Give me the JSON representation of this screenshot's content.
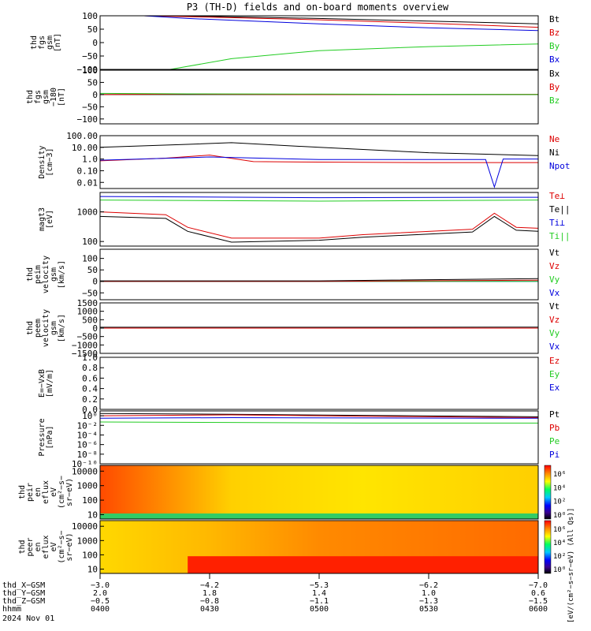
{
  "title": "P3 (TH-D) fields and on-board moments overview",
  "colors": {
    "black": "#000000",
    "red": "#dd0000",
    "green": "#22cc22",
    "blue": "#0000dd"
  },
  "chart_data": [
    {
      "type": "line",
      "ylabel": [
        "thd",
        "fgs",
        "gsm",
        "[nT]"
      ],
      "ylim": [
        -100,
        100
      ],
      "yticks": [
        "100",
        "50",
        "0",
        "−50",
        "−100"
      ],
      "yticks_values": [
        100,
        50,
        0,
        -50,
        -100
      ],
      "legend": [
        {
          "name": "Bt",
          "color": "#000000"
        },
        {
          "name": "Bz",
          "color": "#dd0000"
        },
        {
          "name": "By",
          "color": "#22cc22"
        },
        {
          "name": "Bx",
          "color": "#0000dd"
        }
      ],
      "series": [
        {
          "name": "Bt",
          "color": "#000000",
          "x": [
            0.1,
            0.25,
            0.5,
            0.75,
            1.0
          ],
          "y": [
            100,
            98,
            90,
            80,
            70
          ]
        },
        {
          "name": "Bz",
          "color": "#dd0000",
          "x": [
            0.1,
            0.25,
            0.5,
            0.75,
            1.0
          ],
          "y": [
            100,
            95,
            85,
            72,
            57
          ]
        },
        {
          "name": "Bx",
          "color": "#0000dd",
          "x": [
            0.1,
            0.2,
            0.5,
            0.75,
            1.0
          ],
          "y": [
            100,
            90,
            70,
            55,
            45
          ]
        },
        {
          "name": "By",
          "color": "#22cc22",
          "x": [
            0.16,
            0.3,
            0.5,
            0.75,
            1.0
          ],
          "y": [
            -100,
            -60,
            -30,
            -15,
            -5
          ]
        }
      ]
    },
    {
      "type": "line",
      "ylabel": [
        "thd",
        "fgs",
        "gsm",
        "−180",
        "[nT]"
      ],
      "ylim": [
        -120,
        100
      ],
      "yticks": [
        "100",
        "50",
        "0",
        "−50",
        "−100"
      ],
      "yticks_values": [
        100,
        50,
        0,
        -50,
        -100
      ],
      "legend": [
        {
          "name": "Bx",
          "color": "#000000"
        },
        {
          "name": "By",
          "color": "#dd0000"
        },
        {
          "name": "Bz",
          "color": "#22cc22"
        }
      ],
      "series": [
        {
          "name": "Bx",
          "color": "#000000",
          "x": [
            0,
            0.2,
            0.5,
            1.0
          ],
          "y": [
            0,
            0,
            0,
            0
          ]
        },
        {
          "name": "By",
          "color": "#dd0000",
          "x": [
            0,
            0.2,
            0.5,
            1.0
          ],
          "y": [
            0,
            2,
            0,
            1
          ]
        },
        {
          "name": "Bz",
          "color": "#22cc22",
          "x": [
            0,
            0.2,
            0.5,
            1.0
          ],
          "y": [
            5,
            3,
            2,
            0
          ]
        }
      ]
    },
    {
      "type": "line",
      "ylabel": [
        "Density",
        "[cm−3]"
      ],
      "ylim": [
        0.003,
        100
      ],
      "yscale": "log",
      "yticks": [
        "100.00",
        "10.00",
        "1.0",
        "0.10",
        "0.01"
      ],
      "yticks_values": [
        100,
        10,
        1,
        0.1,
        0.01
      ],
      "legend": [
        {
          "name": "Ne",
          "color": "#dd0000"
        },
        {
          "name": "Ni",
          "color": "#000000"
        },
        {
          "name": "Npot",
          "color": "#0000dd"
        }
      ],
      "series": [
        {
          "name": "Ni",
          "color": "#000000",
          "x": [
            0,
            0.2,
            0.3,
            0.5,
            0.75,
            1.0
          ],
          "y": [
            10,
            18,
            25,
            10,
            3.5,
            2
          ]
        },
        {
          "name": "Ne",
          "color": "#dd0000",
          "x": [
            0,
            0.15,
            0.25,
            0.35,
            0.5,
            0.75,
            1.0
          ],
          "y": [
            0.7,
            1.2,
            2.2,
            0.6,
            0.55,
            0.5,
            0.5
          ]
        },
        {
          "name": "Npot",
          "color": "#0000dd",
          "x": [
            0,
            0.25,
            0.5,
            0.88,
            0.9,
            0.92,
            1.0
          ],
          "y": [
            0.8,
            1.5,
            0.9,
            0.9,
            0.004,
            1.0,
            1.0
          ]
        }
      ]
    },
    {
      "type": "line",
      "ylabel": [
        "magt3",
        "[eV]"
      ],
      "ylim": [
        70,
        4500
      ],
      "yscale": "log",
      "yticks": [
        "1000",
        "100"
      ],
      "yticks_values": [
        1000,
        100
      ],
      "legend": [
        {
          "name": "Te⊥",
          "color": "#dd0000"
        },
        {
          "name": "Te||",
          "color": "#000000"
        },
        {
          "name": "Ti⊥",
          "color": "#0000dd"
        },
        {
          "name": "Ti||",
          "color": "#22cc22"
        }
      ],
      "series": [
        {
          "name": "Ti⊥",
          "color": "#0000dd",
          "x": [
            0,
            0.5,
            1.0
          ],
          "y": [
            3300,
            3000,
            3100
          ]
        },
        {
          "name": "Ti||",
          "color": "#22cc22",
          "x": [
            0,
            0.5,
            1.0
          ],
          "y": [
            2500,
            2300,
            2500
          ]
        },
        {
          "name": "Te⊥",
          "color": "#dd0000",
          "x": [
            0,
            0.15,
            0.2,
            0.3,
            0.5,
            0.6,
            0.85,
            0.9,
            0.95,
            1.0
          ],
          "y": [
            1000,
            800,
            300,
            130,
            130,
            170,
            260,
            900,
            300,
            280
          ]
        },
        {
          "name": "Te||",
          "color": "#000000",
          "x": [
            0,
            0.15,
            0.2,
            0.3,
            0.5,
            0.6,
            0.85,
            0.9,
            0.95,
            1.0
          ],
          "y": [
            700,
            600,
            220,
            95,
            110,
            140,
            210,
            700,
            240,
            220
          ]
        }
      ]
    },
    {
      "type": "line",
      "ylabel": [
        "thd",
        "peim",
        "velocity",
        "gsm",
        "[km/s]"
      ],
      "ylim": [
        -80,
        140
      ],
      "yticks": [
        "100",
        "50",
        "0",
        "−50"
      ],
      "yticks_values": [
        100,
        50,
        0,
        -50
      ],
      "legend": [
        {
          "name": "Vt",
          "color": "#000000"
        },
        {
          "name": "Vz",
          "color": "#dd0000"
        },
        {
          "name": "Vy",
          "color": "#22cc22"
        },
        {
          "name": "Vx",
          "color": "#0000dd"
        }
      ],
      "series": [
        {
          "name": "Vx",
          "color": "#0000dd",
          "x": [
            0,
            0.5,
            1.0
          ],
          "y": [
            0,
            0,
            0
          ]
        },
        {
          "name": "Vy",
          "color": "#22cc22",
          "x": [
            0,
            0.5,
            1.0
          ],
          "y": [
            0,
            0,
            0
          ]
        },
        {
          "name": "Vz",
          "color": "#dd0000",
          "x": [
            0,
            0.5,
            1.0
          ],
          "y": [
            0,
            0,
            5
          ]
        },
        {
          "name": "Vt",
          "color": "#000000",
          "x": [
            0,
            0.5,
            1.0
          ],
          "y": [
            2,
            2,
            12
          ]
        }
      ]
    },
    {
      "type": "line",
      "ylabel": [
        "thd",
        "peem",
        "velocity",
        "gsm",
        "[km/s]"
      ],
      "ylim": [
        -1500,
        1500
      ],
      "yticks": [
        "1500",
        "1000",
        "500",
        "0",
        "−500",
        "−1000",
        "−1500"
      ],
      "yticks_values": [
        1500,
        1000,
        500,
        0,
        -500,
        -1000,
        -1500
      ],
      "legend": [
        {
          "name": "Vt",
          "color": "#000000"
        },
        {
          "name": "Vz",
          "color": "#dd0000"
        },
        {
          "name": "Vy",
          "color": "#22cc22"
        },
        {
          "name": "Vx",
          "color": "#0000dd"
        }
      ],
      "series": [
        {
          "name": "Vx",
          "color": "#0000dd",
          "x": [
            0,
            0.5,
            1.0
          ],
          "y": [
            0,
            0,
            0
          ]
        },
        {
          "name": "Vy",
          "color": "#22cc22",
          "x": [
            0,
            0.5,
            1.0
          ],
          "y": [
            0,
            0,
            0
          ]
        },
        {
          "name": "Vz",
          "color": "#dd0000",
          "x": [
            0,
            0.5,
            1.0
          ],
          "y": [
            0,
            0,
            0
          ]
        },
        {
          "name": "Vt",
          "color": "#000000",
          "x": [
            0,
            0.5,
            1.0
          ],
          "y": [
            50,
            50,
            60
          ]
        }
      ]
    },
    {
      "type": "line",
      "ylabel": [
        "E=−VxB",
        "[mV/m]"
      ],
      "ylim": [
        0,
        1.0
      ],
      "yticks": [
        "1.0",
        "0.8",
        "0.6",
        "0.4",
        "0.2",
        "0.0"
      ],
      "yticks_values": [
        1.0,
        0.8,
        0.6,
        0.4,
        0.2,
        0.0
      ],
      "legend": [
        {
          "name": "Ez",
          "color": "#dd0000"
        },
        {
          "name": "Ey",
          "color": "#22cc22"
        },
        {
          "name": "Ex",
          "color": "#0000dd"
        }
      ],
      "series": []
    },
    {
      "type": "line",
      "ylabel": [
        "Pressure",
        "[nPa]"
      ],
      "ylim": [
        1e-10,
        10
      ],
      "yscale": "log",
      "yticks": [
        "10⁰",
        "10⁻²",
        "10⁻⁴",
        "10⁻⁶",
        "10⁻⁸",
        "10⁻¹⁰"
      ],
      "yticks_values": [
        1,
        0.01,
        0.0001,
        1e-06,
        1e-08,
        1e-10
      ],
      "legend": [
        {
          "name": "Pt",
          "color": "#000000"
        },
        {
          "name": "Pb",
          "color": "#dd0000"
        },
        {
          "name": "Pe",
          "color": "#22cc22"
        },
        {
          "name": "Pi",
          "color": "#0000dd"
        }
      ],
      "series": [
        {
          "name": "Pt",
          "color": "#000000",
          "x": [
            0,
            0.3,
            0.6,
            1.0
          ],
          "y": [
            3,
            2,
            1.2,
            0.6
          ]
        },
        {
          "name": "Pb",
          "color": "#dd0000",
          "x": [
            0,
            0.3,
            0.6,
            1.0
          ],
          "y": [
            1,
            1.5,
            0.8,
            0.4
          ]
        },
        {
          "name": "Pi",
          "color": "#0000dd",
          "x": [
            0,
            0.3,
            0.6,
            1.0
          ],
          "y": [
            0.3,
            0.4,
            0.35,
            0.3
          ]
        },
        {
          "name": "Pe",
          "color": "#22cc22",
          "x": [
            0,
            0.3,
            0.6,
            1.0
          ],
          "y": [
            0.05,
            0.04,
            0.03,
            0.03
          ]
        }
      ]
    },
    {
      "type": "heatmap",
      "ylabel": [
        "thd",
        "peir",
        "en",
        "eflux",
        "eV",
        "(cm²−s−",
        "sr−eV)"
      ],
      "ylim": [
        5,
        25000
      ],
      "yscale": "log",
      "yticks": [
        "10000",
        "1000",
        "100",
        "10"
      ],
      "yticks_values": [
        10000,
        1000,
        100,
        10
      ],
      "colorbar_ticks": [
        "10⁶",
        "10⁴",
        "10²",
        "10⁰"
      ]
    },
    {
      "type": "heatmap",
      "ylabel": [
        "thd",
        "peer",
        "en",
        "eflux",
        "eV",
        "(cm²−s−",
        "sr−eV)"
      ],
      "ylim": [
        5,
        25000
      ],
      "yscale": "log",
      "yticks": [
        "10000",
        "1000",
        "100",
        "10"
      ],
      "yticks_values": [
        10000,
        1000,
        100,
        10
      ],
      "colorbar_ticks": [
        "10⁶",
        "10⁴",
        "10²",
        "10⁰"
      ]
    }
  ],
  "colorbar_label": "[eV/(cm²−s−sr−eV) (All Qs)]",
  "xaxis": {
    "rows": [
      {
        "label": "thd_X−GSM",
        "values": [
          "−3.0",
          "−4.2",
          "−5.3",
          "−6.2",
          "−7.0"
        ]
      },
      {
        "label": "thd_Y−GSM",
        "values": [
          "2.0",
          "1.8",
          "1.4",
          "1.0",
          "0.6"
        ]
      },
      {
        "label": "thd_Z−GSM",
        "values": [
          "−0.5",
          "−0.8",
          "−1.1",
          "−1.3",
          "−1.5"
        ]
      },
      {
        "label": "hhmm",
        "values": [
          "0400",
          "0430",
          "0500",
          "0530",
          "0600"
        ]
      }
    ],
    "date": "2024 Nov 01"
  }
}
